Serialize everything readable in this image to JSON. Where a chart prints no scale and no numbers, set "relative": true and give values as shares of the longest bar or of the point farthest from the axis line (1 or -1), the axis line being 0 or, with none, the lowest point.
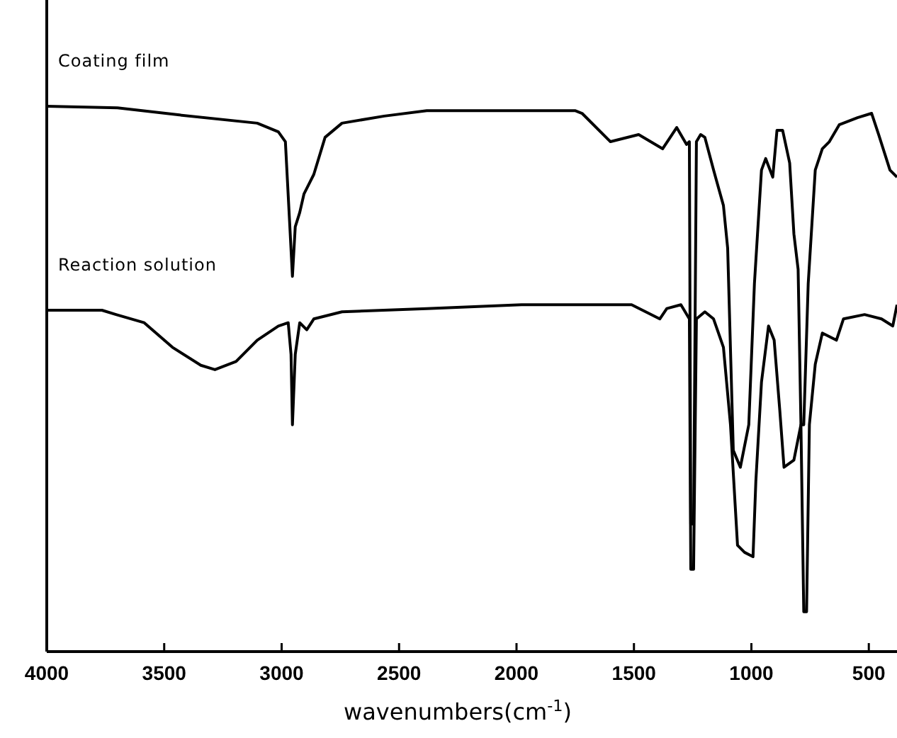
{
  "chart_data": {
    "type": "line",
    "relative": true,
    "xlabel": "wavenumbers(cm$^{-1}$)",
    "xlim": [
      4000,
      380
    ],
    "xticks": [
      4000,
      3500,
      3000,
      2500,
      2000,
      1500,
      1000,
      500
    ],
    "line_style": "solid",
    "series": [
      {
        "name": "Coating film",
        "color": "#000000",
        "x": [
          4000,
          3699,
          3435,
          3104,
          3014,
          2984,
          2966,
          2954,
          2942,
          2923,
          2905,
          2863,
          2815,
          2743,
          2563,
          2382,
          1751,
          1721,
          1600,
          1480,
          1378,
          1318,
          1276,
          1264,
          1258,
          1246,
          1234,
          1216,
          1198,
          1161,
          1119,
          1101,
          1077,
          1047,
          1011,
          987,
          957,
          939,
          909,
          891,
          867,
          837,
          819,
          801,
          789,
          777,
          758,
          728,
          698,
          668,
          626,
          548,
          488,
          458,
          410,
          380
        ],
        "values": [
          1.0,
          0.997,
          0.984,
          0.969,
          0.953,
          0.935,
          0.787,
          0.688,
          0.779,
          0.805,
          0.839,
          0.875,
          0.943,
          0.969,
          0.982,
          0.992,
          0.992,
          0.987,
          0.935,
          0.948,
          0.922,
          0.961,
          0.93,
          0.935,
          0.234,
          0.234,
          0.935,
          0.948,
          0.943,
          0.883,
          0.818,
          0.74,
          0.369,
          0.338,
          0.416,
          0.675,
          0.883,
          0.904,
          0.87,
          0.956,
          0.956,
          0.896,
          0.766,
          0.701,
          0.416,
          0.416,
          0.675,
          0.883,
          0.922,
          0.935,
          0.966,
          0.979,
          0.987,
          0.948,
          0.883,
          0.87
        ]
      },
      {
        "name": "Reaction solution",
        "color": "#000000",
        "x": [
          4000,
          3765,
          3705,
          3585,
          3465,
          3344,
          3284,
          3194,
          3104,
          3014,
          2972,
          2960,
          2954,
          2942,
          2923,
          2893,
          2863,
          2743,
          2382,
          1979,
          1510,
          1390,
          1360,
          1300,
          1264,
          1258,
          1246,
          1234,
          1198,
          1161,
          1119,
          1089,
          1059,
          1029,
          993,
          981,
          957,
          927,
          903,
          879,
          861,
          819,
          789,
          777,
          765,
          753,
          728,
          698,
          638,
          608,
          518,
          446,
          398,
          380
        ],
        "values": [
          0.626,
          0.626,
          0.618,
          0.603,
          0.558,
          0.525,
          0.517,
          0.532,
          0.571,
          0.597,
          0.603,
          0.545,
          0.416,
          0.545,
          0.603,
          0.59,
          0.61,
          0.623,
          0.629,
          0.636,
          0.636,
          0.61,
          0.629,
          0.636,
          0.61,
          0.151,
          0.151,
          0.61,
          0.623,
          0.61,
          0.558,
          0.416,
          0.195,
          0.182,
          0.174,
          0.312,
          0.494,
          0.597,
          0.571,
          0.442,
          0.338,
          0.351,
          0.416,
          0.073,
          0.073,
          0.416,
          0.527,
          0.584,
          0.571,
          0.61,
          0.618,
          0.61,
          0.597,
          0.636
        ]
      }
    ]
  }
}
